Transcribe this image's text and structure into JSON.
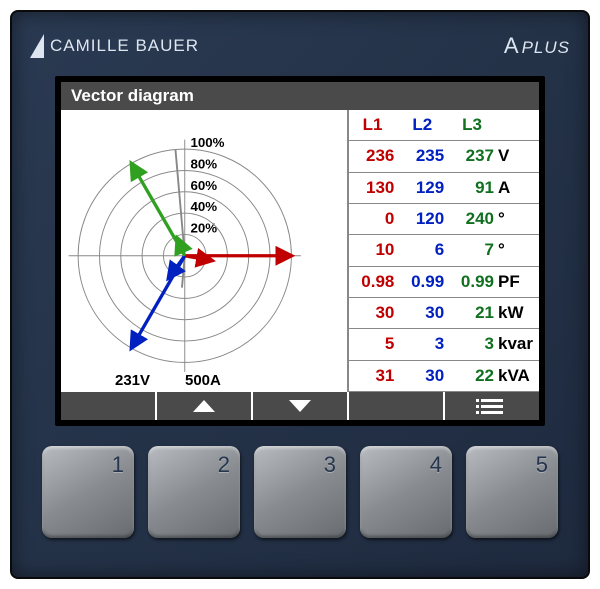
{
  "brand": "CAMILLE BAUER",
  "model_prefix": "A",
  "model_suffix": "PLUS",
  "screen_title": "Vector diagram",
  "diagram": {
    "rings_pct": [
      "20%",
      "40%",
      "60%",
      "80%",
      "100%"
    ],
    "voltage_scale": "231V",
    "current_scale": "500A",
    "phase_colors": {
      "L1": "#c00000",
      "L2": "#0020c0",
      "L3": "#30a020"
    },
    "voltage_vectors": [
      {
        "phase": "L1",
        "angle_deg": 0,
        "mag_pct": 100
      },
      {
        "phase": "L2",
        "angle_deg": 240,
        "mag_pct": 100
      },
      {
        "phase": "L3",
        "angle_deg": 120,
        "mag_pct": 100
      }
    ],
    "current_vectors": [
      {
        "phase": "L1",
        "angle_deg": 350,
        "mag_pct": 26
      },
      {
        "phase": "L2",
        "angle_deg": 234,
        "mag_pct": 26
      },
      {
        "phase": "L3",
        "angle_deg": 113,
        "mag_pct": 18
      }
    ],
    "background": "#ffffff",
    "grid_color": "#888888"
  },
  "table": {
    "headers": [
      "L1",
      "L2",
      "L3"
    ],
    "colors": [
      "#c00000",
      "#0020c0",
      "#107020"
    ],
    "rows": [
      {
        "vals": [
          "236",
          "235",
          "237"
        ],
        "unit": "V"
      },
      {
        "vals": [
          "130",
          "129",
          "91"
        ],
        "unit": "A"
      },
      {
        "vals": [
          "0",
          "120",
          "240"
        ],
        "unit": "°"
      },
      {
        "vals": [
          "10",
          "6",
          "7"
        ],
        "unit": "°"
      },
      {
        "vals": [
          "0.98",
          "0.99",
          "0.99"
        ],
        "unit": "PF"
      },
      {
        "vals": [
          "30",
          "30",
          "21"
        ],
        "unit": "kW"
      },
      {
        "vals": [
          "5",
          "3",
          "3"
        ],
        "unit": "kvar"
      },
      {
        "vals": [
          "31",
          "30",
          "22"
        ],
        "unit": "kVA"
      }
    ]
  },
  "softkeys": [
    "",
    "up",
    "down",
    "",
    "menu"
  ],
  "keys": [
    "1",
    "2",
    "3",
    "4",
    "5"
  ]
}
